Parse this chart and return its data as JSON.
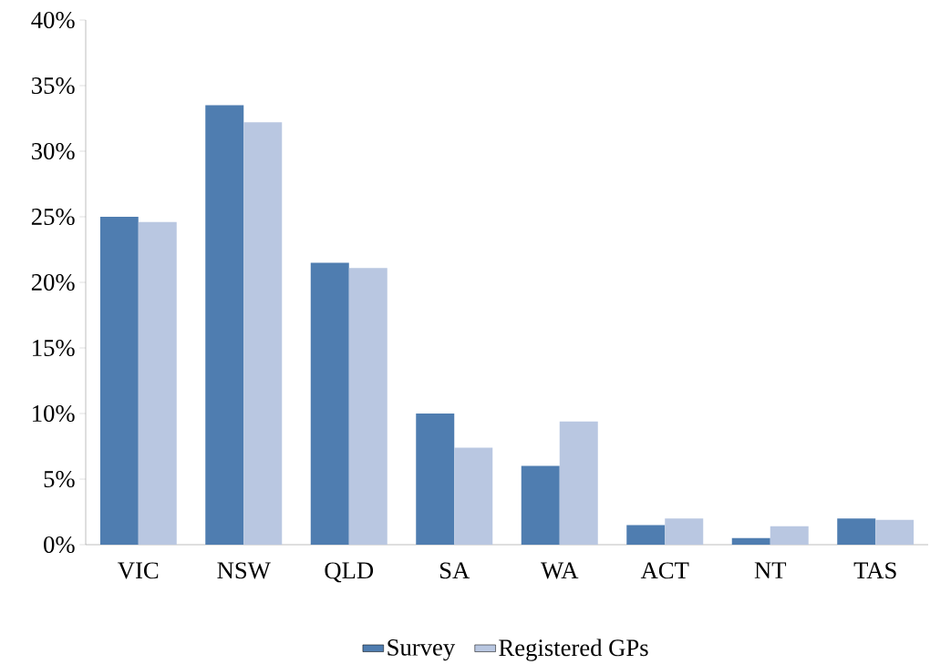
{
  "chart_data": {
    "type": "bar",
    "categories": [
      "VIC",
      "NSW",
      "QLD",
      "SA",
      "WA",
      "ACT",
      "NT",
      "TAS"
    ],
    "series": [
      {
        "name": "Survey",
        "color": "#4f7db0",
        "values": [
          25.0,
          33.5,
          21.5,
          10.0,
          6.0,
          1.5,
          0.5,
          2.0
        ]
      },
      {
        "name": "Registered GPs",
        "color": "#b9c7e1",
        "values": [
          24.6,
          32.2,
          21.1,
          7.4,
          9.4,
          2.0,
          1.4,
          1.9
        ]
      }
    ],
    "ylim": [
      0,
      40
    ],
    "yticks": [
      {
        "value": 0,
        "label": "0%"
      },
      {
        "value": 5,
        "label": "5%"
      },
      {
        "value": 10,
        "label": "10%"
      },
      {
        "value": 15,
        "label": "15%"
      },
      {
        "value": 20,
        "label": "20%"
      },
      {
        "value": 25,
        "label": "25%"
      },
      {
        "value": 30,
        "label": "30%"
      },
      {
        "value": 35,
        "label": "35%"
      },
      {
        "value": 40,
        "label": "40%"
      }
    ],
    "grid": false,
    "legend": "bottom"
  }
}
